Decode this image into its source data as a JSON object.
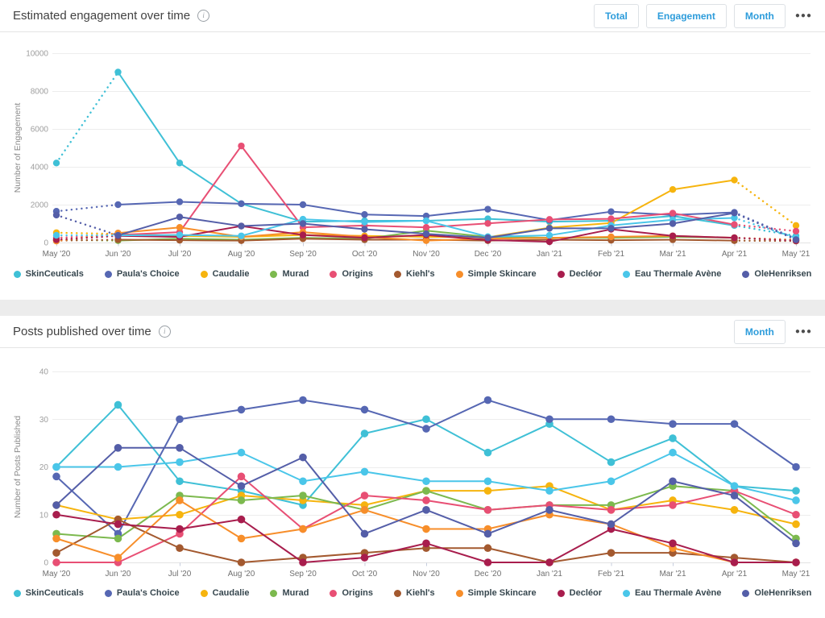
{
  "card1": {
    "title": "Estimated engagement over time",
    "info_icon": "i",
    "buttons": [
      {
        "label": "Total"
      },
      {
        "label": "Engagement"
      },
      {
        "label": "Month"
      }
    ],
    "more_icon": "●●●"
  },
  "card2": {
    "title": "Posts published over time",
    "info_icon": "i",
    "buttons": [
      {
        "label": "Month"
      }
    ],
    "more_icon": "●●●"
  },
  "colors": {
    "accent_blue": "#2d9cdb",
    "grid": "#ececec",
    "axis_text": "#9e9e9e",
    "x_text": "#6f6f6f",
    "tick_mark": "#c7cede"
  },
  "chart_data": [
    {
      "id": "engagement",
      "type": "line",
      "title": "Estimated engagement over time",
      "ylabel": "Number of Engagement",
      "ylim": [
        0,
        10000
      ],
      "yticks": [
        0,
        2000,
        4000,
        6000,
        8000,
        10000
      ],
      "grid": true,
      "legend_position": "bottom",
      "dotted_end_segments": true,
      "x": [
        "May '20",
        "Jun '20",
        "Jul '20",
        "Aug '20",
        "Sep '20",
        "Oct '20",
        "Nov '20",
        "Dec '20",
        "Jan '21",
        "Feb '21",
        "Mar '21",
        "Apr '21",
        "May '21"
      ],
      "series": [
        {
          "name": "SkinCeuticals",
          "color": "#3fc0d6",
          "values": [
            4200,
            9000,
            4200,
            2050,
            1100,
            1150,
            1150,
            1250,
            1100,
            1150,
            1400,
            900,
            350
          ]
        },
        {
          "name": "Paula's Choice",
          "color": "#5667b3",
          "values": [
            1650,
            2000,
            2150,
            2050,
            2000,
            1480,
            1400,
            1760,
            1180,
            1630,
            1460,
            1590,
            200
          ]
        },
        {
          "name": "Caudalie",
          "color": "#f6b40e",
          "values": [
            520,
            450,
            350,
            300,
            400,
            350,
            300,
            280,
            780,
            1030,
            2800,
            3300,
            900
          ]
        },
        {
          "name": "Murad",
          "color": "#7cb94e",
          "values": [
            150,
            100,
            200,
            150,
            250,
            200,
            630,
            300,
            250,
            250,
            300,
            250,
            100
          ]
        },
        {
          "name": "Origins",
          "color": "#e84f74",
          "values": [
            250,
            400,
            550,
            5100,
            800,
            900,
            800,
            1010,
            1220,
            1250,
            1550,
            950,
            600
          ]
        },
        {
          "name": "Kiehl's",
          "color": "#a3592f",
          "values": [
            100,
            150,
            120,
            100,
            200,
            150,
            150,
            100,
            150,
            120,
            150,
            100,
            80
          ]
        },
        {
          "name": "Simple Skincare",
          "color": "#f78e2a",
          "values": [
            80,
            500,
            800,
            300,
            550,
            300,
            100,
            200,
            250,
            300,
            350,
            250,
            150
          ]
        },
        {
          "name": "Decléor",
          "color": "#a81d4d",
          "values": [
            150,
            350,
            300,
            870,
            400,
            250,
            400,
            130,
            40,
            700,
            350,
            250,
            100
          ]
        },
        {
          "name": "Eau Thermale Avène",
          "color": "#4ac6e9",
          "values": [
            380,
            380,
            400,
            350,
            1230,
            1080,
            1150,
            310,
            380,
            900,
            1200,
            1300,
            250
          ]
        },
        {
          "name": "OleHenriksen",
          "color": "#545ea8",
          "values": [
            1450,
            380,
            1350,
            870,
            1000,
            700,
            460,
            250,
            750,
            750,
            1000,
            1560,
            150
          ]
        }
      ]
    },
    {
      "id": "posts",
      "type": "line",
      "title": "Posts published over time",
      "ylabel": "Number of Posts Published",
      "ylim": [
        0,
        40
      ],
      "yticks": [
        0,
        10,
        20,
        30,
        40
      ],
      "grid": true,
      "legend_position": "bottom",
      "dotted_end_segments": false,
      "x": [
        "May '20",
        "Jun '20",
        "Jul '20",
        "Aug '20",
        "Sep '20",
        "Oct '20",
        "Nov '20",
        "Dec '20",
        "Jan '21",
        "Feb '21",
        "Mar '21",
        "Apr '21",
        "May '21"
      ],
      "series": [
        {
          "name": "SkinCeuticals",
          "color": "#3fc0d6",
          "values": [
            20,
            33,
            17,
            15,
            12,
            27,
            30,
            23,
            29,
            21,
            26,
            16,
            15
          ]
        },
        {
          "name": "Paula's Choice",
          "color": "#5667b3",
          "values": [
            18,
            6,
            30,
            32,
            34,
            32,
            28,
            34,
            30,
            30,
            29,
            29,
            20
          ]
        },
        {
          "name": "Caudalie",
          "color": "#f6b40e",
          "values": [
            12,
            9,
            10,
            14,
            13,
            12,
            15,
            15,
            16,
            11,
            13,
            11,
            8
          ]
        },
        {
          "name": "Murad",
          "color": "#7cb94e",
          "values": [
            6,
            5,
            14,
            13,
            14,
            11,
            15,
            11,
            12,
            12,
            16,
            15,
            5
          ]
        },
        {
          "name": "Origins",
          "color": "#e84f74",
          "values": [
            0,
            0,
            6,
            18,
            7,
            14,
            13,
            11,
            12,
            11,
            12,
            15,
            10
          ]
        },
        {
          "name": "Kiehl's",
          "color": "#a3592f",
          "values": [
            2,
            9,
            3,
            0,
            1,
            2,
            3,
            3,
            0,
            2,
            2,
            1,
            0
          ]
        },
        {
          "name": "Simple Skincare",
          "color": "#f78e2a",
          "values": [
            5,
            1,
            13,
            5,
            7,
            11,
            7,
            7,
            10,
            8,
            3,
            0,
            0
          ]
        },
        {
          "name": "Decléor",
          "color": "#a81d4d",
          "values": [
            10,
            8,
            7,
            9,
            0,
            1,
            4,
            0,
            0,
            7,
            4,
            0,
            0
          ]
        },
        {
          "name": "Eau Thermale Avène",
          "color": "#4ac6e9",
          "values": [
            20,
            20,
            21,
            23,
            17,
            19,
            17,
            17,
            15,
            17,
            23,
            16,
            13
          ]
        },
        {
          "name": "OleHenriksen",
          "color": "#545ea8",
          "values": [
            12,
            24,
            24,
            16,
            22,
            6,
            11,
            6,
            11,
            8,
            17,
            14,
            4
          ]
        }
      ]
    }
  ]
}
